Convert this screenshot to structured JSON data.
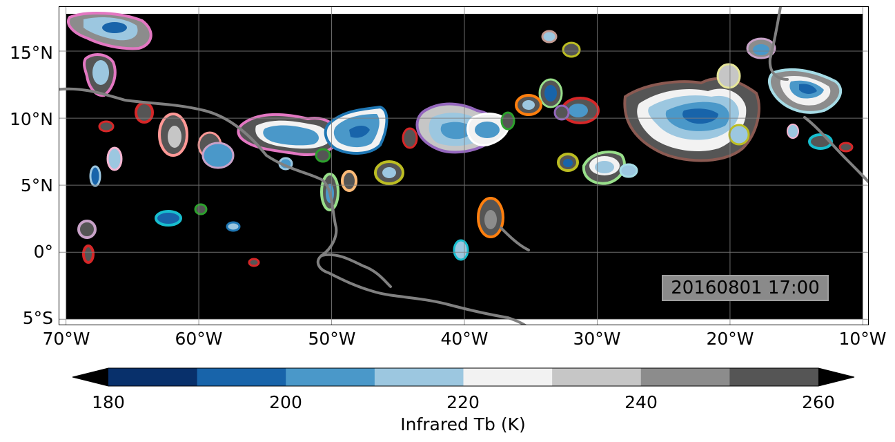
{
  "map": {
    "timestamp": "20160801 17:00",
    "lat_labels": [
      "15°N",
      "10°N",
      "5°N",
      "0°",
      "5°S"
    ],
    "lon_labels": [
      "70°W",
      "60°W",
      "50°W",
      "40°W",
      "30°W",
      "20°W",
      "10°W"
    ],
    "extent": {
      "lon_min": -70.5,
      "lon_max": -9.5,
      "lat_min": -5.5,
      "lat_max": 18.3
    },
    "background_color": "#000000",
    "coastline_color": "#808080",
    "grid_color": "#808080"
  },
  "colorbar": {
    "label": "Infrared Tb (K)",
    "tick_labels": [
      "180",
      "200",
      "220",
      "240",
      "260"
    ],
    "levels": [
      180,
      190,
      200,
      210,
      220,
      230,
      240,
      250,
      260
    ],
    "colors": [
      "#08306b",
      "#1864aa",
      "#4a98c9",
      "#9cc7e0",
      "#f2f2f2",
      "#c6c6c6",
      "#8c8c8c",
      "#555555"
    ],
    "extend": "both",
    "under_color": "#000000",
    "over_color": "#000000"
  }
}
